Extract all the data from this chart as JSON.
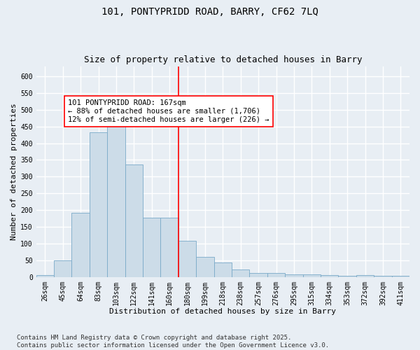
{
  "title_line1": "101, PONTYPRIDD ROAD, BARRY, CF62 7LQ",
  "title_line2": "Size of property relative to detached houses in Barry",
  "xlabel": "Distribution of detached houses by size in Barry",
  "ylabel": "Number of detached properties",
  "categories": [
    "26sqm",
    "45sqm",
    "64sqm",
    "83sqm",
    "103sqm",
    "122sqm",
    "141sqm",
    "160sqm",
    "180sqm",
    "199sqm",
    "218sqm",
    "238sqm",
    "257sqm",
    "276sqm",
    "295sqm",
    "315sqm",
    "334sqm",
    "353sqm",
    "372sqm",
    "392sqm",
    "411sqm"
  ],
  "values": [
    5,
    50,
    191,
    432,
    483,
    337,
    178,
    178,
    108,
    60,
    43,
    23,
    11,
    11,
    8,
    8,
    5,
    4,
    5,
    3,
    3
  ],
  "bar_color": "#ccdce8",
  "bar_edge_color": "#7aaac8",
  "vline_color": "red",
  "annotation_text": "101 PONTYPRIDD ROAD: 167sqm\n← 88% of detached houses are smaller (1,706)\n12% of semi-detached houses are larger (226) →",
  "annotation_box_color": "white",
  "annotation_box_edge": "red",
  "ylim": [
    0,
    630
  ],
  "yticks": [
    0,
    50,
    100,
    150,
    200,
    250,
    300,
    350,
    400,
    450,
    500,
    550,
    600
  ],
  "background_color": "#e8eef4",
  "grid_color": "white",
  "footer_text": "Contains HM Land Registry data © Crown copyright and database right 2025.\nContains public sector information licensed under the Open Government Licence v3.0.",
  "title_fontsize": 10,
  "subtitle_fontsize": 9,
  "axis_label_fontsize": 8,
  "tick_fontsize": 7,
  "annotation_fontsize": 7.5,
  "footer_fontsize": 6.5
}
